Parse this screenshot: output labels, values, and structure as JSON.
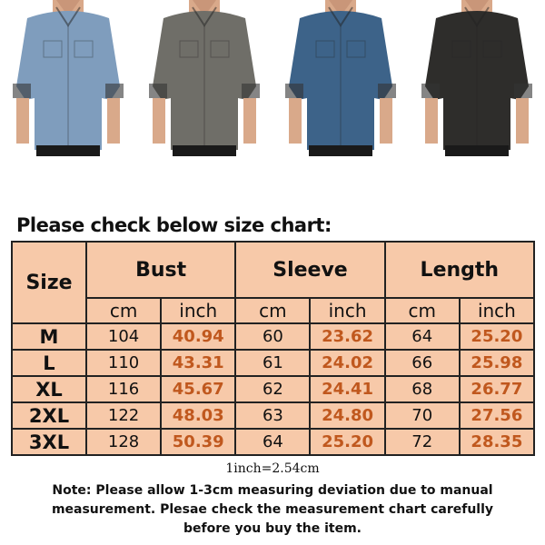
{
  "photos": [
    {
      "name": "light-blue-denim-shirt",
      "color": "#7f9dbd"
    },
    {
      "name": "gray-denim-shirt",
      "color": "#6f6e68"
    },
    {
      "name": "blue-denim-shirt",
      "color": "#3d6389"
    },
    {
      "name": "black-denim-shirt",
      "color": "#2e2d2b"
    }
  ],
  "title": "Please check below size chart:",
  "colors": {
    "table_bg": "#f7c9a9",
    "inch_text": "#c0581e"
  },
  "chart_data": {
    "type": "table",
    "headers": {
      "size": "Size",
      "groups": [
        "Bust",
        "Sleeve",
        "Length"
      ],
      "units": [
        "cm",
        "inch",
        "cm",
        "inch",
        "cm",
        "inch"
      ]
    },
    "rows": [
      {
        "size": "M",
        "values": [
          "104",
          "40.94",
          "60",
          "23.62",
          "64",
          "25.20"
        ]
      },
      {
        "size": "L",
        "values": [
          "110",
          "43.31",
          "61",
          "24.02",
          "66",
          "25.98"
        ]
      },
      {
        "size": "XL",
        "values": [
          "116",
          "45.67",
          "62",
          "24.41",
          "68",
          "26.77"
        ]
      },
      {
        "size": "2XL",
        "values": [
          "122",
          "48.03",
          "63",
          "24.80",
          "70",
          "27.56"
        ]
      },
      {
        "size": "3XL",
        "values": [
          "128",
          "50.39",
          "64",
          "25.20",
          "72",
          "28.35"
        ]
      }
    ]
  },
  "conversion": "1inch=2.54cm",
  "note": "Note: Please allow 1-3cm measuring deviation due to manual measurement. Plesae check the measurement chart carefully before you buy the item."
}
